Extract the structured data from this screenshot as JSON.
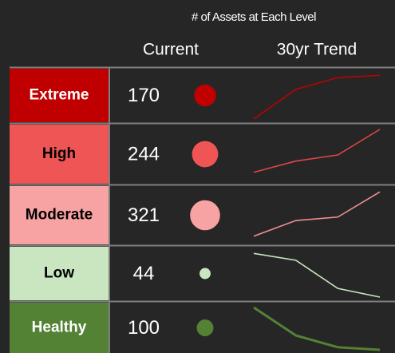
{
  "header": {
    "title": "# of Assets at Each Level",
    "columns": [
      "Current",
      "30yr Trend"
    ]
  },
  "trend_range": [
    0,
    100
  ],
  "rows": [
    {
      "level": "Extreme",
      "count": 170,
      "fill": "#c00000",
      "text_color": "#ffffff",
      "dot": "#c00000",
      "line": "#c00000",
      "trend": [
        0,
        65,
        91,
        96
      ]
    },
    {
      "level": "High",
      "count": 244,
      "fill": "#ef5555",
      "text_color": "#000000",
      "dot": "#ef5555",
      "line": "#e04545",
      "trend": [
        16,
        38,
        50,
        100
      ]
    },
    {
      "level": "Moderate",
      "count": 321,
      "fill": "#f8a3a3",
      "text_color": "#000000",
      "dot": "#f8a3a3",
      "line": "#f09090",
      "trend": [
        10,
        41,
        48,
        98
      ]
    },
    {
      "level": "Low",
      "count": 44,
      "fill": "#c9e6c1",
      "text_color": "#000000",
      "dot": "#c9e6c1",
      "line": "#c9e6c1",
      "trend": [
        96,
        81,
        19,
        0
      ]
    },
    {
      "level": "Healthy",
      "count": 100,
      "fill": "#548235",
      "text_color": "#ffffff",
      "dot": "#548235",
      "line": "#548235",
      "trend": [
        100,
        34,
        6,
        0
      ]
    }
  ]
}
